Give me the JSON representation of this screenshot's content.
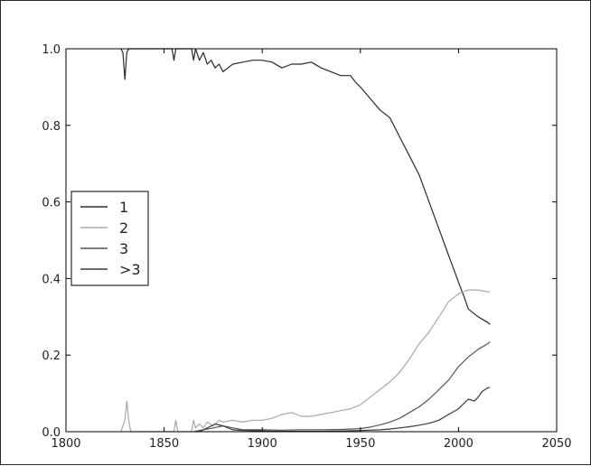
{
  "chart_data": {
    "type": "line",
    "title": "",
    "xlabel": "",
    "ylabel": "",
    "xlim": [
      1800,
      2050
    ],
    "ylim": [
      0.0,
      1.0
    ],
    "grid": false,
    "legend_position": "center-left",
    "xticks": [
      "1800",
      "1850",
      "1900",
      "1950",
      "2000",
      "2050"
    ],
    "yticks": [
      "0.0",
      "0.2",
      "0.4",
      "0.6",
      "0.8",
      "1.0"
    ],
    "series": [
      {
        "name": "1",
        "color": "#2b2b2b",
        "x": [
          1828,
          1829,
          1830,
          1831,
          1832,
          1835,
          1840,
          1845,
          1850,
          1854,
          1855,
          1856,
          1860,
          1864,
          1865,
          1866,
          1868,
          1870,
          1872,
          1874,
          1876,
          1878,
          1880,
          1885,
          1890,
          1895,
          1900,
          1905,
          1910,
          1915,
          1920,
          1925,
          1930,
          1935,
          1940,
          1945,
          1948,
          1950,
          1955,
          1960,
          1965,
          1970,
          1975,
          1980,
          1985,
          1990,
          1995,
          2000,
          2003,
          2005,
          2010,
          2015,
          2016
        ],
        "values": [
          1.0,
          0.99,
          0.92,
          0.99,
          1.0,
          1.0,
          1.0,
          1.0,
          1.0,
          1.0,
          0.97,
          1.0,
          1.0,
          1.0,
          0.97,
          1.0,
          0.97,
          0.99,
          0.96,
          0.97,
          0.95,
          0.96,
          0.94,
          0.96,
          0.965,
          0.97,
          0.97,
          0.965,
          0.95,
          0.96,
          0.96,
          0.965,
          0.95,
          0.94,
          0.93,
          0.93,
          0.91,
          0.9,
          0.87,
          0.84,
          0.82,
          0.77,
          0.72,
          0.67,
          0.6,
          0.53,
          0.46,
          0.39,
          0.35,
          0.32,
          0.3,
          0.285,
          0.28
        ]
      },
      {
        "name": "2",
        "color": "#a8a8a8",
        "x": [
          1828,
          1830,
          1831,
          1832,
          1833,
          1850,
          1855,
          1856,
          1857,
          1864,
          1865,
          1866,
          1868,
          1870,
          1872,
          1875,
          1878,
          1880,
          1885,
          1890,
          1895,
          1900,
          1905,
          1910,
          1915,
          1920,
          1925,
          1930,
          1935,
          1940,
          1945,
          1950,
          1955,
          1960,
          1965,
          1970,
          1975,
          1980,
          1985,
          1990,
          1995,
          2000,
          2005,
          2010,
          2015,
          2016
        ],
        "values": [
          0.0,
          0.03,
          0.08,
          0.03,
          0.0,
          0.0,
          0.0,
          0.03,
          0.0,
          0.0,
          0.03,
          0.01,
          0.02,
          0.01,
          0.025,
          0.015,
          0.03,
          0.025,
          0.03,
          0.025,
          0.03,
          0.03,
          0.035,
          0.045,
          0.05,
          0.04,
          0.04,
          0.045,
          0.05,
          0.055,
          0.06,
          0.07,
          0.09,
          0.11,
          0.13,
          0.155,
          0.19,
          0.23,
          0.26,
          0.3,
          0.34,
          0.36,
          0.37,
          0.37,
          0.365,
          0.365
        ]
      },
      {
        "name": "3",
        "color": "#555555",
        "x": [
          1865,
          1870,
          1875,
          1880,
          1885,
          1890,
          1900,
          1910,
          1920,
          1930,
          1940,
          1950,
          1955,
          1960,
          1965,
          1970,
          1975,
          1980,
          1985,
          1990,
          1995,
          2000,
          2005,
          2010,
          2015,
          2016
        ],
        "values": [
          0.0,
          0.005,
          0.01,
          0.015,
          0.01,
          0.005,
          0.005,
          0.004,
          0.005,
          0.005,
          0.006,
          0.008,
          0.012,
          0.018,
          0.025,
          0.035,
          0.05,
          0.065,
          0.085,
          0.11,
          0.135,
          0.17,
          0.195,
          0.215,
          0.23,
          0.235
        ]
      },
      {
        "name": ">3",
        "color": "#3a3a3a",
        "x": [
          1868,
          1872,
          1876,
          1880,
          1885,
          1890,
          1900,
          1910,
          1920,
          1930,
          1940,
          1950,
          1960,
          1965,
          1970,
          1975,
          1980,
          1985,
          1990,
          1995,
          2000,
          2003,
          2005,
          2008,
          2010,
          2012,
          2015,
          2016
        ],
        "values": [
          0.0,
          0.01,
          0.02,
          0.015,
          0.005,
          0.003,
          0.002,
          0.001,
          0.001,
          0.001,
          0.002,
          0.003,
          0.005,
          0.007,
          0.01,
          0.013,
          0.017,
          0.022,
          0.03,
          0.045,
          0.06,
          0.075,
          0.085,
          0.08,
          0.09,
          0.105,
          0.115,
          0.115
        ]
      }
    ]
  }
}
